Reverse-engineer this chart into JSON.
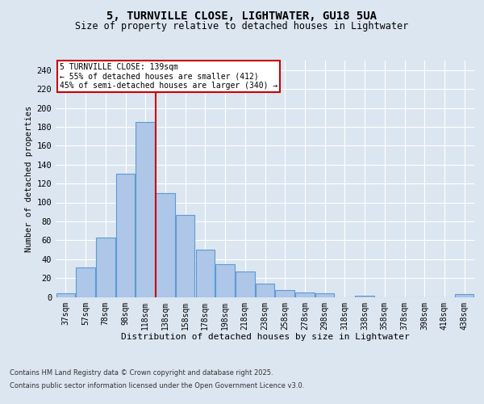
{
  "title1": "5, TURNVILLE CLOSE, LIGHTWATER, GU18 5UA",
  "title2": "Size of property relative to detached houses in Lightwater",
  "xlabel": "Distribution of detached houses by size in Lightwater",
  "ylabel": "Number of detached properties",
  "categories": [
    "37sqm",
    "57sqm",
    "78sqm",
    "98sqm",
    "118sqm",
    "138sqm",
    "158sqm",
    "178sqm",
    "198sqm",
    "218sqm",
    "238sqm",
    "258sqm",
    "278sqm",
    "298sqm",
    "318sqm",
    "338sqm",
    "358sqm",
    "378sqm",
    "398sqm",
    "418sqm",
    "438sqm"
  ],
  "values": [
    4,
    31,
    63,
    130,
    185,
    110,
    87,
    50,
    35,
    27,
    14,
    7,
    5,
    4,
    0,
    1,
    0,
    0,
    0,
    0,
    3
  ],
  "bar_color": "#aec6e8",
  "bar_edge_color": "#5b9bd5",
  "background_color": "#dce6f1",
  "plot_bg_color": "#dce6f1",
  "vline_color": "#cc0000",
  "annotation_text": "5 TURNVILLE CLOSE: 139sqm\n← 55% of detached houses are smaller (412)\n45% of semi-detached houses are larger (340) →",
  "annotation_box_color": "#cc0000",
  "ylim": [
    0,
    250
  ],
  "yticks": [
    0,
    20,
    40,
    60,
    80,
    100,
    120,
    140,
    160,
    180,
    200,
    220,
    240
  ],
  "footnote1": "Contains HM Land Registry data © Crown copyright and database right 2025.",
  "footnote2": "Contains public sector information licensed under the Open Government Licence v3.0."
}
